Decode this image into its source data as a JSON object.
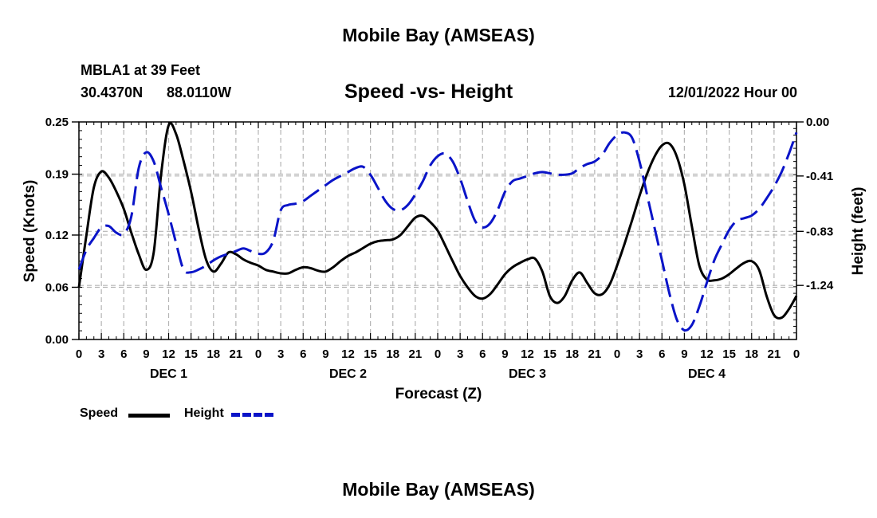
{
  "page_title": "Mobile Bay (AMSEAS)",
  "station": {
    "line1": "MBLA1 at 39 Feet",
    "lat": "30.4370N",
    "lon": "88.0110W"
  },
  "forecast_start": "12/01/2022 Hour 00",
  "bottom_title": "Mobile Bay (AMSEAS)",
  "legend": {
    "speed_label": "Speed",
    "height_label": "Height"
  },
  "colors": {
    "speed": "#000000",
    "height": "#0a14c8",
    "grid": "#b4b4b4"
  },
  "chart_data": {
    "type": "line",
    "title": "Speed -vs- Height",
    "xlabel": "Forecast (Z)",
    "ylabel": "Speed (Knots)",
    "y2label": "Height (feet)",
    "x_range": [
      0,
      96
    ],
    "x_unit": "hours since 12/01/2022 00Z",
    "x_ticks": [
      0,
      3,
      6,
      9,
      12,
      15,
      18,
      21,
      24,
      27,
      30,
      33,
      36,
      39,
      42,
      45,
      48,
      51,
      54,
      57,
      60,
      63,
      66,
      69,
      72,
      75,
      78,
      81,
      84,
      87,
      90,
      93,
      96
    ],
    "x_tick_labels": [
      "0",
      "3",
      "6",
      "9",
      "12",
      "15",
      "18",
      "21",
      "0",
      "3",
      "6",
      "9",
      "12",
      "15",
      "18",
      "21",
      "0",
      "3",
      "6",
      "9",
      "12",
      "15",
      "18",
      "21",
      "0",
      "3",
      "6",
      "9",
      "12",
      "15",
      "18",
      "21",
      "0"
    ],
    "day_labels": [
      {
        "label": "DEC 1",
        "hour": 12
      },
      {
        "label": "DEC 2",
        "hour": 36
      },
      {
        "label": "DEC 3",
        "hour": 60
      },
      {
        "label": "DEC 4",
        "hour": 84
      }
    ],
    "ylim": [
      0,
      0.25
    ],
    "y_ticks": [
      0.0,
      0.06,
      0.12,
      0.19,
      0.25
    ],
    "y_tick_labels": [
      "0.00",
      "0.06",
      "0.12",
      "0.19",
      "0.25"
    ],
    "y2lim": [
      -1.65,
      0.0
    ],
    "y2_ticks": [
      0.0,
      -0.41,
      -0.83,
      -1.24
    ],
    "y2_tick_labels": [
      "0.00",
      "-0.41",
      "-0.83",
      "-1.24"
    ],
    "grid": true,
    "series": [
      {
        "name": "Speed",
        "axis": "left",
        "style": "solid",
        "points": [
          [
            0,
            0.06
          ],
          [
            1,
            0.12
          ],
          [
            2,
            0.175
          ],
          [
            3,
            0.193
          ],
          [
            4,
            0.186
          ],
          [
            5,
            0.17
          ],
          [
            6,
            0.15
          ],
          [
            7,
            0.123
          ],
          [
            8,
            0.098
          ],
          [
            9,
            0.08
          ],
          [
            10,
            0.1
          ],
          [
            11,
            0.19
          ],
          [
            12,
            0.246
          ],
          [
            13,
            0.236
          ],
          [
            14,
            0.205
          ],
          [
            15,
            0.17
          ],
          [
            16,
            0.128
          ],
          [
            17,
            0.092
          ],
          [
            18,
            0.078
          ],
          [
            19,
            0.087
          ],
          [
            20,
            0.1
          ],
          [
            21,
            0.098
          ],
          [
            22,
            0.092
          ],
          [
            23,
            0.088
          ],
          [
            24,
            0.085
          ],
          [
            25,
            0.08
          ],
          [
            26,
            0.078
          ],
          [
            27,
            0.076
          ],
          [
            28,
            0.076
          ],
          [
            29,
            0.08
          ],
          [
            30,
            0.083
          ],
          [
            31,
            0.082
          ],
          [
            32,
            0.079
          ],
          [
            33,
            0.078
          ],
          [
            34,
            0.083
          ],
          [
            35,
            0.09
          ],
          [
            36,
            0.096
          ],
          [
            37,
            0.1
          ],
          [
            38,
            0.105
          ],
          [
            39,
            0.11
          ],
          [
            40,
            0.113
          ],
          [
            41,
            0.114
          ],
          [
            42,
            0.115
          ],
          [
            43,
            0.12
          ],
          [
            44,
            0.13
          ],
          [
            45,
            0.14
          ],
          [
            46,
            0.142
          ],
          [
            47,
            0.135
          ],
          [
            48,
            0.125
          ],
          [
            49,
            0.108
          ],
          [
            50,
            0.09
          ],
          [
            51,
            0.073
          ],
          [
            52,
            0.06
          ],
          [
            53,
            0.05
          ],
          [
            54,
            0.047
          ],
          [
            55,
            0.052
          ],
          [
            56,
            0.063
          ],
          [
            57,
            0.075
          ],
          [
            58,
            0.083
          ],
          [
            59,
            0.088
          ],
          [
            60,
            0.092
          ],
          [
            61,
            0.093
          ],
          [
            62,
            0.078
          ],
          [
            63,
            0.05
          ],
          [
            64,
            0.042
          ],
          [
            65,
            0.05
          ],
          [
            66,
            0.068
          ],
          [
            67,
            0.077
          ],
          [
            68,
            0.065
          ],
          [
            69,
            0.053
          ],
          [
            70,
            0.052
          ],
          [
            71,
            0.063
          ],
          [
            72,
            0.085
          ],
          [
            73,
            0.11
          ],
          [
            74,
            0.137
          ],
          [
            75,
            0.165
          ],
          [
            76,
            0.19
          ],
          [
            77,
            0.21
          ],
          [
            78,
            0.223
          ],
          [
            79,
            0.225
          ],
          [
            80,
            0.21
          ],
          [
            81,
            0.178
          ],
          [
            82,
            0.13
          ],
          [
            83,
            0.085
          ],
          [
            84,
            0.069
          ],
          [
            85,
            0.068
          ],
          [
            86,
            0.07
          ],
          [
            87,
            0.075
          ],
          [
            88,
            0.082
          ],
          [
            89,
            0.088
          ],
          [
            90,
            0.09
          ],
          [
            91,
            0.08
          ],
          [
            92,
            0.05
          ],
          [
            93,
            0.028
          ],
          [
            94,
            0.025
          ],
          [
            95,
            0.035
          ],
          [
            96,
            0.05
          ]
        ]
      },
      {
        "name": "Height",
        "axis": "right",
        "style": "dashed",
        "points": [
          [
            0,
            -1.12
          ],
          [
            1,
            -0.97
          ],
          [
            2,
            -0.88
          ],
          [
            3,
            -0.8
          ],
          [
            4,
            -0.79
          ],
          [
            5,
            -0.84
          ],
          [
            6,
            -0.85
          ],
          [
            7,
            -0.72
          ],
          [
            8,
            -0.35
          ],
          [
            9,
            -0.23
          ],
          [
            10,
            -0.3
          ],
          [
            11,
            -0.5
          ],
          [
            12,
            -0.7
          ],
          [
            13,
            -0.92
          ],
          [
            14,
            -1.12
          ],
          [
            15,
            -1.14
          ],
          [
            16,
            -1.12
          ],
          [
            17,
            -1.09
          ],
          [
            18,
            -1.05
          ],
          [
            19,
            -1.02
          ],
          [
            20,
            -1.0
          ],
          [
            21,
            -0.98
          ],
          [
            22,
            -0.96
          ],
          [
            23,
            -0.98
          ],
          [
            24,
            -1.0
          ],
          [
            25,
            -0.99
          ],
          [
            26,
            -0.9
          ],
          [
            27,
            -0.67
          ],
          [
            28,
            -0.63
          ],
          [
            29,
            -0.62
          ],
          [
            30,
            -0.6
          ],
          [
            31,
            -0.56
          ],
          [
            32,
            -0.52
          ],
          [
            33,
            -0.48
          ],
          [
            34,
            -0.44
          ],
          [
            35,
            -0.41
          ],
          [
            36,
            -0.38
          ],
          [
            37,
            -0.35
          ],
          [
            38,
            -0.34
          ],
          [
            39,
            -0.4
          ],
          [
            40,
            -0.5
          ],
          [
            41,
            -0.6
          ],
          [
            42,
            -0.66
          ],
          [
            43,
            -0.67
          ],
          [
            44,
            -0.63
          ],
          [
            45,
            -0.55
          ],
          [
            46,
            -0.45
          ],
          [
            47,
            -0.33
          ],
          [
            48,
            -0.26
          ],
          [
            49,
            -0.24
          ],
          [
            50,
            -0.3
          ],
          [
            51,
            -0.43
          ],
          [
            52,
            -0.6
          ],
          [
            53,
            -0.75
          ],
          [
            54,
            -0.8
          ],
          [
            55,
            -0.77
          ],
          [
            56,
            -0.67
          ],
          [
            57,
            -0.53
          ],
          [
            58,
            -0.45
          ],
          [
            59,
            -0.43
          ],
          [
            60,
            -0.41
          ],
          [
            61,
            -0.39
          ],
          [
            62,
            -0.38
          ],
          [
            63,
            -0.39
          ],
          [
            64,
            -0.4
          ],
          [
            65,
            -0.4
          ],
          [
            66,
            -0.39
          ],
          [
            67,
            -0.35
          ],
          [
            68,
            -0.32
          ],
          [
            69,
            -0.3
          ],
          [
            70,
            -0.25
          ],
          [
            71,
            -0.16
          ],
          [
            72,
            -0.1
          ],
          [
            73,
            -0.08
          ],
          [
            74,
            -0.12
          ],
          [
            75,
            -0.3
          ],
          [
            76,
            -0.55
          ],
          [
            77,
            -0.8
          ],
          [
            78,
            -1.05
          ],
          [
            79,
            -1.3
          ],
          [
            80,
            -1.5
          ],
          [
            81,
            -1.58
          ],
          [
            82,
            -1.54
          ],
          [
            83,
            -1.4
          ],
          [
            84,
            -1.22
          ],
          [
            85,
            -1.05
          ],
          [
            86,
            -0.93
          ],
          [
            87,
            -0.82
          ],
          [
            88,
            -0.75
          ],
          [
            89,
            -0.73
          ],
          [
            90,
            -0.71
          ],
          [
            91,
            -0.66
          ],
          [
            92,
            -0.58
          ],
          [
            93,
            -0.49
          ],
          [
            94,
            -0.38
          ],
          [
            95,
            -0.24
          ],
          [
            96,
            -0.08
          ]
        ]
      }
    ]
  }
}
